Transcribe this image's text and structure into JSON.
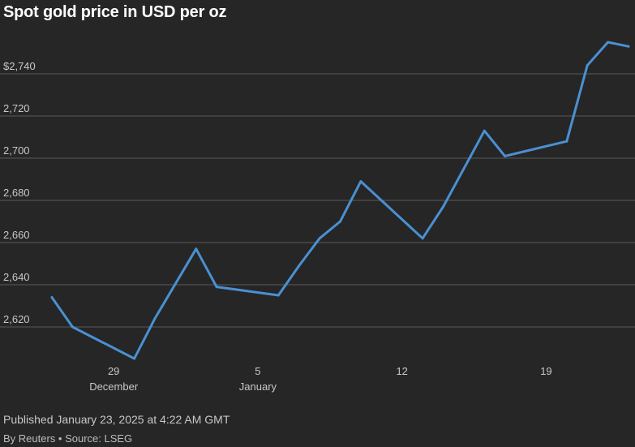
{
  "header": {
    "title": "Spot gold price in USD per oz"
  },
  "footer": {
    "published": "Published January 23, 2025 at 4:22 AM GMT",
    "byline": "By Reuters • Source: LSEG"
  },
  "colors": {
    "background": "#262626",
    "line": "#4a90d2",
    "grid": "#5a5a5a",
    "text": "#c8c8c8"
  },
  "chart_data": {
    "type": "line",
    "title": "Spot gold price in USD per oz",
    "xlabel": "",
    "ylabel": "",
    "ylim": [
      2600,
      2760
    ],
    "grid": true,
    "y_ticks": [
      {
        "value": 2620,
        "label": "2,620"
      },
      {
        "value": 2640,
        "label": "2,640"
      },
      {
        "value": 2660,
        "label": "2,660"
      },
      {
        "value": 2680,
        "label": "2,680"
      },
      {
        "value": 2700,
        "label": "2,700"
      },
      {
        "value": 2720,
        "label": "2,720"
      },
      {
        "value": 2740,
        "label": "$2,740"
      }
    ],
    "x_ticks": [
      {
        "date": "2024-12-29",
        "label": "29",
        "sublabel": "December"
      },
      {
        "date": "2025-01-05",
        "label": "5",
        "sublabel": "January"
      },
      {
        "date": "2025-01-12",
        "label": "12",
        "sublabel": ""
      },
      {
        "date": "2025-01-19",
        "label": "19",
        "sublabel": ""
      }
    ],
    "xlim": [
      "2024-12-26",
      "2025-01-23"
    ],
    "series": [
      {
        "points": [
          {
            "x": "2024-12-26",
            "y": 2634
          },
          {
            "x": "2024-12-27",
            "y": 2620
          },
          {
            "x": "2024-12-30",
            "y": 2605
          },
          {
            "x": "2024-12-31",
            "y": 2624
          },
          {
            "x": "2025-01-02",
            "y": 2657
          },
          {
            "x": "2025-01-03",
            "y": 2639
          },
          {
            "x": "2025-01-06",
            "y": 2635
          },
          {
            "x": "2025-01-07",
            "y": 2649
          },
          {
            "x": "2025-01-08",
            "y": 2662
          },
          {
            "x": "2025-01-09",
            "y": 2670
          },
          {
            "x": "2025-01-10",
            "y": 2689
          },
          {
            "x": "2025-01-13",
            "y": 2662
          },
          {
            "x": "2025-01-14",
            "y": 2677
          },
          {
            "x": "2025-01-16",
            "y": 2713
          },
          {
            "x": "2025-01-17",
            "y": 2701
          },
          {
            "x": "2025-01-20",
            "y": 2708
          },
          {
            "x": "2025-01-21",
            "y": 2744
          },
          {
            "x": "2025-01-22",
            "y": 2755
          },
          {
            "x": "2025-01-23",
            "y": 2753
          }
        ]
      }
    ]
  }
}
